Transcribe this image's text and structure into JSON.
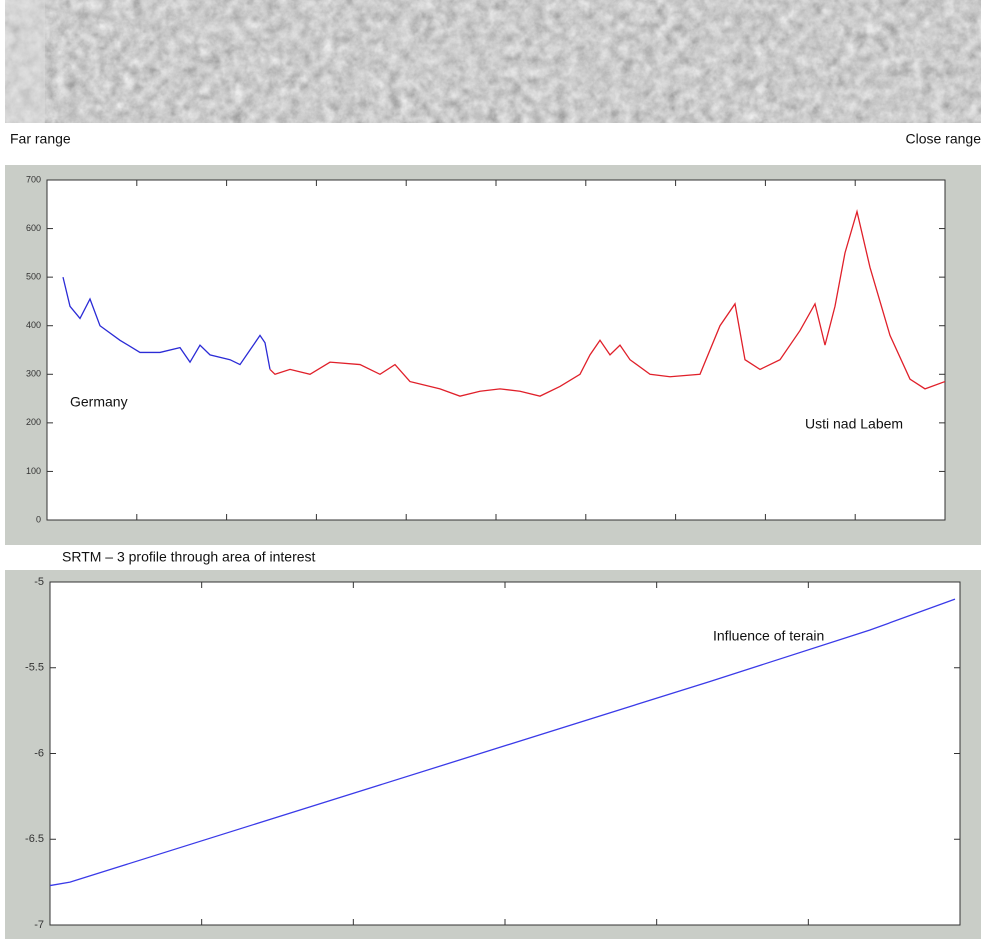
{
  "image": {
    "left_label": "Far range",
    "right_label": "Close range"
  },
  "caption": "SRTM – 3 profile through area of interest",
  "chart_data": [
    {
      "type": "line",
      "annotations": [
        "Germany",
        "Usti nad Labem"
      ],
      "xlim": [
        0,
        898
      ],
      "ylim": [
        0,
        700
      ],
      "yticks": [
        0,
        100,
        200,
        300,
        400,
        500,
        600,
        700
      ],
      "series": [
        {
          "color": "#2b2bd6",
          "x": [
            16,
            23,
            33,
            43,
            53,
            73,
            93,
            113,
            133,
            143,
            153,
            163,
            183,
            193,
            203,
            213,
            218,
            223
          ],
          "values": [
            500,
            440,
            415,
            455,
            400,
            370,
            345,
            345,
            355,
            325,
            360,
            340,
            330,
            320,
            350,
            380,
            365,
            310
          ]
        },
        {
          "color": "#e0202a",
          "x": [
            223,
            228,
            243,
            263,
            283,
            313,
            333,
            348,
            363,
            393,
            413,
            433,
            453,
            473,
            493,
            513,
            533,
            543,
            553,
            563,
            573,
            583,
            603,
            623,
            653,
            673,
            688,
            698,
            713,
            733,
            753,
            768,
            778,
            788,
            798,
            810,
            823,
            843,
            863,
            878,
            898
          ],
          "values": [
            310,
            300,
            310,
            300,
            325,
            320,
            300,
            320,
            285,
            270,
            255,
            265,
            270,
            265,
            255,
            275,
            300,
            340,
            370,
            340,
            360,
            330,
            300,
            295,
            300,
            400,
            445,
            330,
            310,
            330,
            390,
            445,
            360,
            440,
            550,
            635,
            520,
            380,
            290,
            270,
            285
          ]
        }
      ]
    },
    {
      "type": "line",
      "annotations": [
        "Influence of terain"
      ],
      "xlim": [
        0,
        910
      ],
      "ylim": [
        -7,
        -5
      ],
      "yticks": [
        -7,
        -6.5,
        -6,
        -5.5,
        -5
      ],
      "series": [
        {
          "color": "#3a3ae8",
          "x": [
            0,
            20,
            660,
            820,
            905
          ],
          "values": [
            -6.77,
            -6.75,
            -5.58,
            -5.28,
            -5.1
          ]
        }
      ]
    }
  ]
}
